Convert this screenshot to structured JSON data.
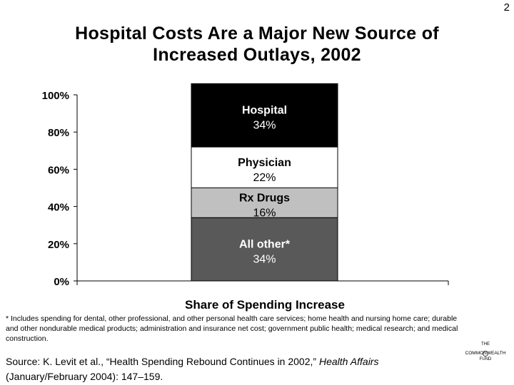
{
  "page": {
    "number": "2"
  },
  "header": {
    "title_line1": "Hospital Costs Are a Major New Source of",
    "title_line2": "Increased Outlays, 2002"
  },
  "chart_data": {
    "type": "bar",
    "stacked": true,
    "orientation": "vertical",
    "title": "",
    "xlabel": "Share of Spending Increase",
    "ylabel": "",
    "ylim": [
      0,
      100
    ],
    "yticks": [
      "0%",
      "20%",
      "40%",
      "60%",
      "80%",
      "100%"
    ],
    "grid": false,
    "categories": [
      "Share of Spending Increase"
    ],
    "segments": [
      {
        "name": "All other*",
        "value": 34,
        "label": "34%",
        "color": "#595959",
        "text_color": "#ffffff"
      },
      {
        "name": "Rx Drugs",
        "value": 16,
        "label": "16%",
        "color": "#c0c0c0",
        "text_color": "#000000"
      },
      {
        "name": "Physician",
        "value": 22,
        "label": "22%",
        "color": "#ffffff",
        "text_color": "#000000"
      },
      {
        "name": "Hospital",
        "value": 34,
        "label": "34%",
        "color": "#000000",
        "text_color": "#ffffff"
      }
    ]
  },
  "footnote": "* Includes spending for dental, other professional, and other personal health care services; home health and nursing home care; durable and other nondurable medical products; administration and insurance net cost; government public health; medical research; and medical construction.",
  "source": {
    "prefix": "Source: K. Levit et al., “Health Spending Rebound Continues in 2002,” ",
    "journal": "Health Affairs",
    "suffix": " (January/February 2004): 147–159."
  },
  "logo": {
    "line1": "THE",
    "line2": "COMMONWEALTH",
    "line3": "FUND",
    "icon": "commonwealth-fund-logo-icon"
  }
}
